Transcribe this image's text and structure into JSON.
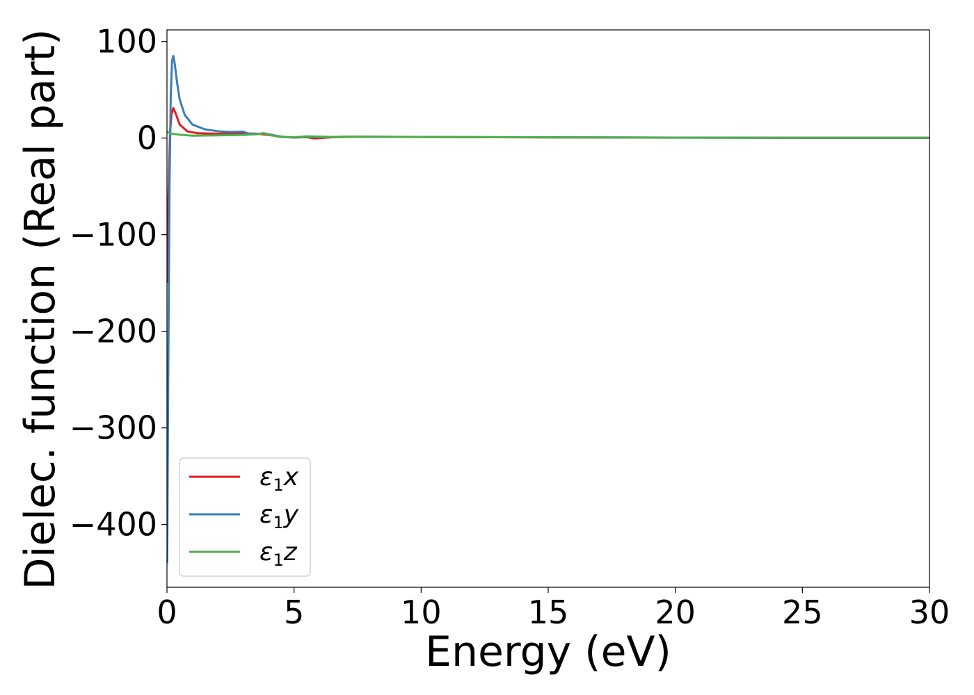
{
  "chart_data": {
    "type": "line",
    "xlabel": "Energy (eV)",
    "ylabel": "Dielec. function (Real part)",
    "xlim": [
      0,
      30
    ],
    "ylim": [
      -465,
      112
    ],
    "xticks": [
      0,
      5,
      10,
      15,
      20,
      25,
      30
    ],
    "xtick_labels": [
      "0",
      "5",
      "10",
      "15",
      "20",
      "25",
      "30"
    ],
    "yticks": [
      100,
      0,
      -100,
      -200,
      -300,
      -400
    ],
    "ytick_labels": [
      "100",
      "0",
      "−100",
      "−200",
      "−300",
      "−400"
    ],
    "grid": false,
    "legend_position": "lower-left",
    "series": [
      {
        "name": "ε1x",
        "legend": {
          "main": "ε",
          "sub": "1",
          "suffix": "x"
        },
        "color": "#e41a1c",
        "points": [
          [
            0.02,
            -150
          ],
          [
            0.06,
            -60
          ],
          [
            0.12,
            5
          ],
          [
            0.18,
            25
          ],
          [
            0.25,
            31
          ],
          [
            0.35,
            25
          ],
          [
            0.5,
            14
          ],
          [
            0.8,
            7
          ],
          [
            1.2,
            5
          ],
          [
            2.0,
            4.5
          ],
          [
            3.0,
            4.8
          ],
          [
            3.5,
            4.6
          ],
          [
            4.0,
            3.2
          ],
          [
            4.6,
            1.2
          ],
          [
            5.0,
            0.6
          ],
          [
            5.5,
            0.9
          ],
          [
            5.8,
            -0.4
          ],
          [
            6.5,
            0.8
          ],
          [
            7.5,
            1.4
          ],
          [
            10,
            1.1
          ],
          [
            15,
            0.7
          ],
          [
            20,
            0.5
          ],
          [
            25,
            0.3
          ],
          [
            30,
            0.3
          ]
        ]
      },
      {
        "name": "ε1y",
        "legend": {
          "main": "ε",
          "sub": "1",
          "suffix": "y"
        },
        "color": "#377eb8",
        "points": [
          [
            0.01,
            -440
          ],
          [
            0.05,
            -250
          ],
          [
            0.1,
            -50
          ],
          [
            0.15,
            45
          ],
          [
            0.2,
            80
          ],
          [
            0.25,
            85
          ],
          [
            0.3,
            78
          ],
          [
            0.4,
            57
          ],
          [
            0.5,
            40
          ],
          [
            0.7,
            24
          ],
          [
            1.0,
            14
          ],
          [
            1.5,
            9
          ],
          [
            2.0,
            7
          ],
          [
            2.5,
            6.3
          ],
          [
            3.0,
            6.8
          ],
          [
            3.2,
            4.5
          ],
          [
            3.5,
            4.2
          ],
          [
            3.8,
            5.0
          ],
          [
            4.1,
            3.5
          ],
          [
            4.5,
            1.2
          ],
          [
            5.0,
            0.5
          ],
          [
            5.5,
            1.3
          ],
          [
            6.0,
            0.8
          ],
          [
            7.0,
            1.5
          ],
          [
            10,
            1.2
          ],
          [
            15,
            0.8
          ],
          [
            20,
            0.5
          ],
          [
            25,
            0.3
          ],
          [
            30,
            0.3
          ]
        ]
      },
      {
        "name": "ε1z",
        "legend": {
          "main": "ε",
          "sub": "1",
          "suffix": "z"
        },
        "color": "#4daf4a",
        "points": [
          [
            0.0,
            6.5
          ],
          [
            0.2,
            4.5
          ],
          [
            0.5,
            3.5
          ],
          [
            1.0,
            2.5
          ],
          [
            2.0,
            2.8
          ],
          [
            3.0,
            3.3
          ],
          [
            3.5,
            3.9
          ],
          [
            3.8,
            4.8
          ],
          [
            4.0,
            3.4
          ],
          [
            4.5,
            1.0
          ],
          [
            5.0,
            0.8
          ],
          [
            5.5,
            1.8
          ],
          [
            6.5,
            1.2
          ],
          [
            7.5,
            1.4
          ],
          [
            10,
            1.1
          ],
          [
            15,
            0.7
          ],
          [
            20,
            0.4
          ],
          [
            25,
            0.2
          ],
          [
            30,
            0.2
          ]
        ]
      }
    ]
  }
}
